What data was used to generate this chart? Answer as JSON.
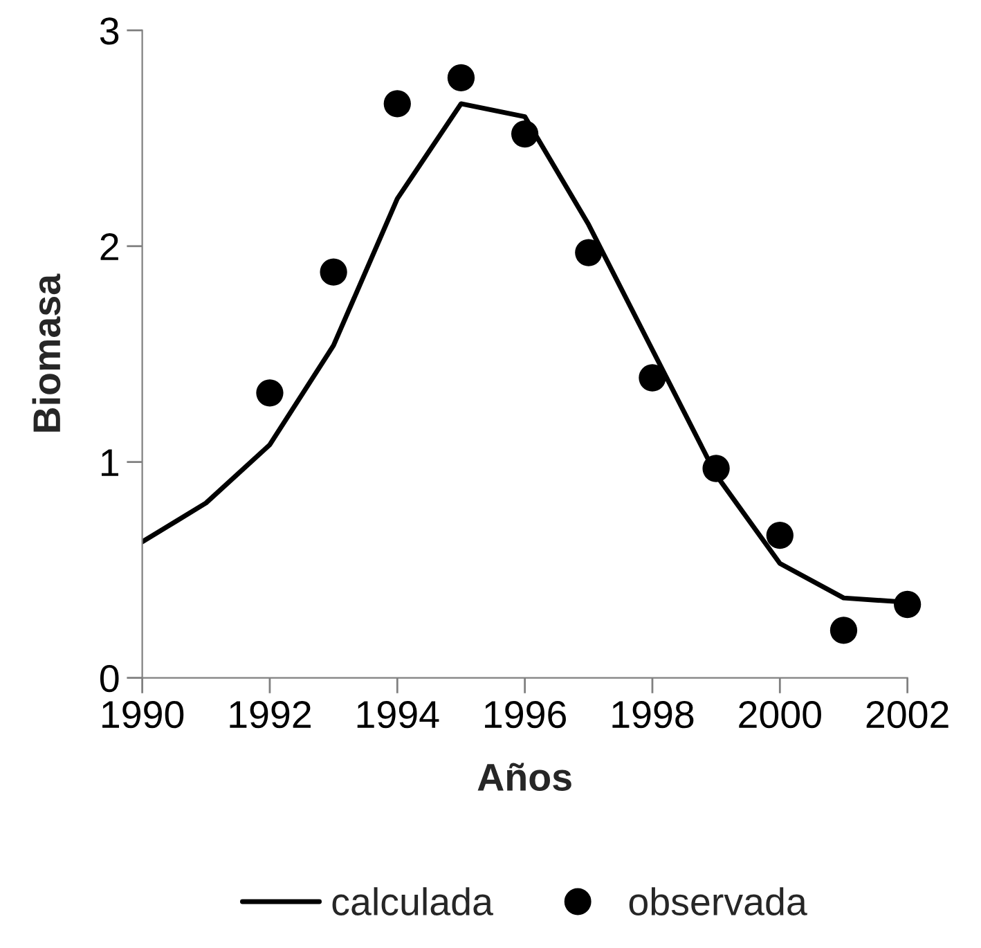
{
  "chart_data": {
    "type": "line",
    "xlabel": "Años",
    "ylabel": "Biomasa",
    "x": [
      1990,
      1991,
      1992,
      1993,
      1994,
      1995,
      1996,
      1997,
      1998,
      1999,
      2000,
      2001,
      2002
    ],
    "series": [
      {
        "name": "calculada",
        "color": "#000000",
        "marker": "none",
        "line_style": "solid",
        "values": [
          0.63,
          0.81,
          1.08,
          1.54,
          2.22,
          2.66,
          2.6,
          2.1,
          1.52,
          0.94,
          0.53,
          0.37,
          0.35
        ]
      },
      {
        "name": "observada",
        "type": "scatter",
        "color": "#000000",
        "marker": "circle",
        "x": [
          1992,
          1993,
          1994,
          1995,
          1996,
          1997,
          1998,
          1999,
          2000,
          2001,
          2002
        ],
        "values": [
          1.32,
          1.88,
          2.66,
          2.78,
          2.52,
          1.97,
          1.39,
          0.97,
          0.66,
          0.22,
          0.34
        ]
      }
    ],
    "xlim": [
      1990,
      2002
    ],
    "xticks": [
      1990,
      1992,
      1994,
      1996,
      1998,
      2000,
      2002
    ],
    "ylim": [
      0,
      3
    ],
    "yticks": [
      0,
      1,
      2,
      3
    ],
    "grid": false,
    "legend": "bottom"
  }
}
